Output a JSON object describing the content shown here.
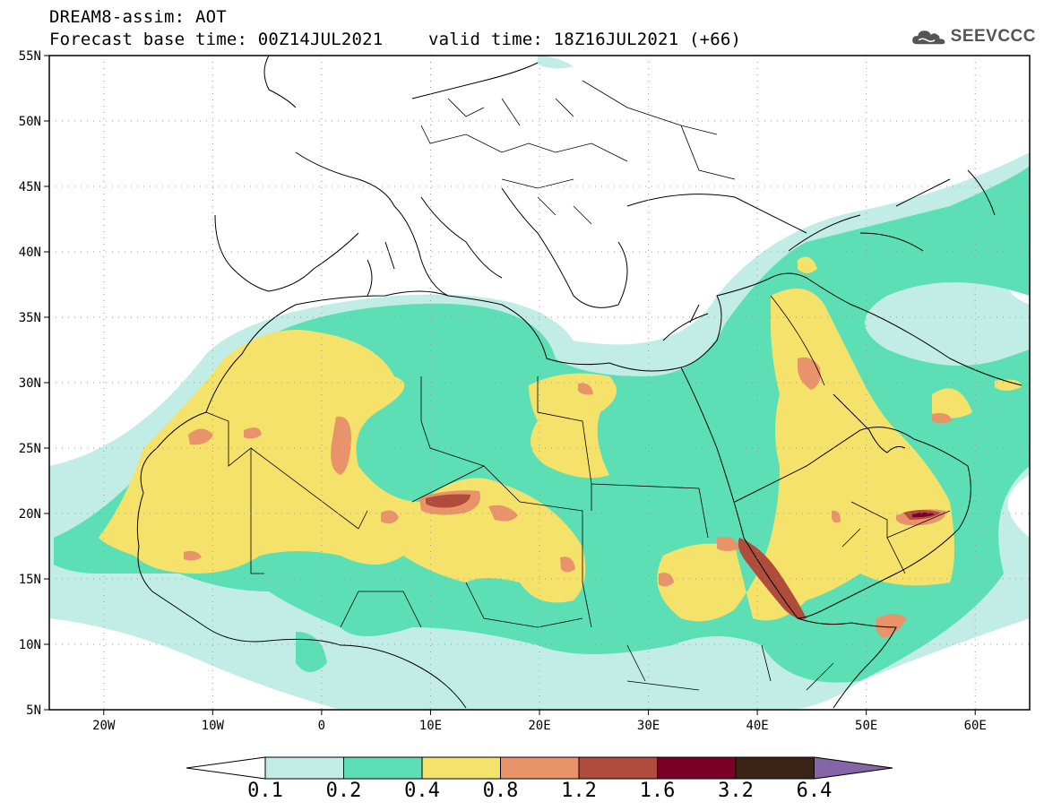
{
  "header": {
    "title": "DREAM8-assim: AOT",
    "base_time": "Forecast base time: 00Z14JUL2021",
    "valid_time": "valid time: 18Z16JUL2021 (+66)"
  },
  "logo": {
    "text": "SEEVCCC",
    "icon": "cloud-icon"
  },
  "map": {
    "extent": {
      "lon": [
        -25,
        65
      ],
      "lat": [
        5,
        55
      ]
    },
    "lat_labels": [
      "55N",
      "50N",
      "45N",
      "40N",
      "35N",
      "30N",
      "25N",
      "20N",
      "15N",
      "10N",
      "5N"
    ],
    "lon_labels": [
      "20W",
      "10W",
      "0",
      "10E",
      "20E",
      "30E",
      "40E",
      "50E",
      "60E"
    ],
    "grid": true,
    "ocean_color": "#ffffff",
    "border_color": "#000000"
  },
  "colorbar": {
    "labels": [
      "0.1",
      "0.2",
      "0.4",
      "0.8",
      "1.2",
      "1.6",
      "3.2",
      "6.4"
    ],
    "colors": [
      "#ffffff",
      "#c2ede6",
      "#5cdfb5",
      "#f5e26b",
      "#e8936a",
      "#b04c3c",
      "#7b0027",
      "#3b2415",
      "#8565a6"
    ]
  },
  "aot_levels": {
    "l1": "#c2ede6",
    "l2": "#5cdfb5",
    "l3": "#f5e26b",
    "l4": "#e8936a",
    "l5": "#b04c3c",
    "l6": "#7b0027"
  }
}
